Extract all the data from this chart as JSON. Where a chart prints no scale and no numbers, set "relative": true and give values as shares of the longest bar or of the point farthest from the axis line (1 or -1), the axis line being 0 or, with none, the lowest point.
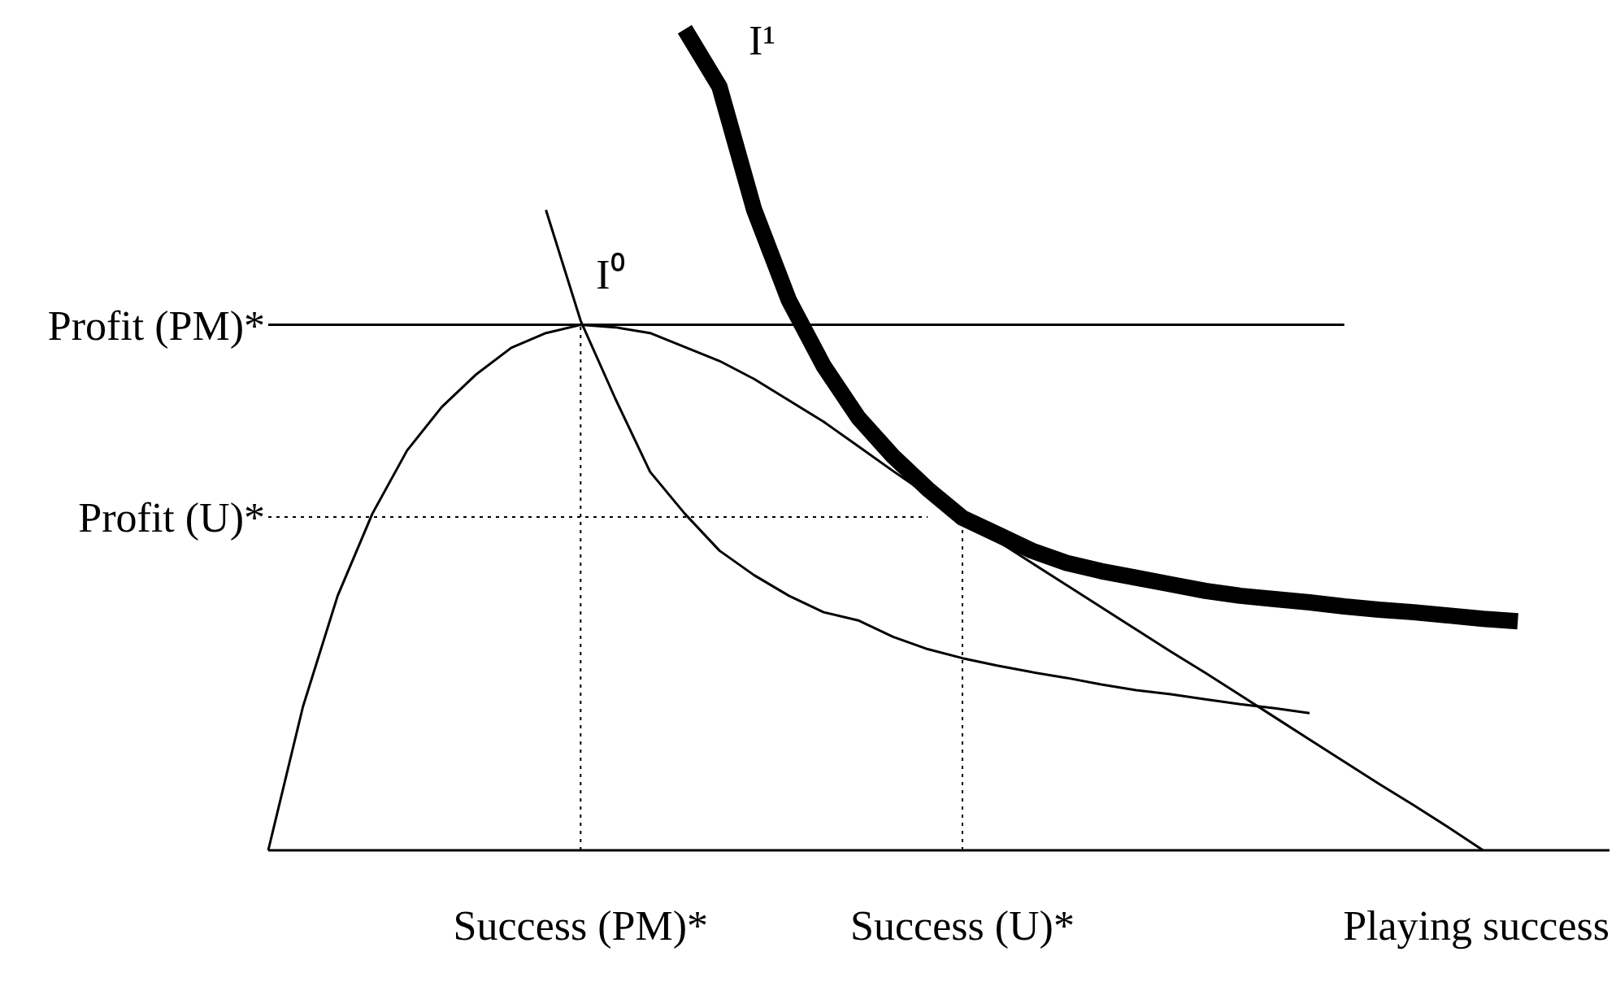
{
  "chart_data": {
    "type": "line",
    "relative": true,
    "xlabel": "Playing success",
    "categories": [
      null,
      null,
      null,
      null,
      null,
      null,
      null,
      null,
      null,
      "Success (PM)*",
      null,
      null,
      null,
      null,
      null,
      null,
      null,
      null,
      null,
      null,
      "Success (U)*",
      null,
      null,
      null,
      null,
      null,
      null,
      null,
      null,
      null,
      null,
      null,
      null,
      null,
      null,
      null,
      null,
      null,
      null
    ],
    "series": [
      {
        "color": "#000000",
        "values": [
          0,
          0.175,
          0.31,
          0.41,
          0.487,
          0.54,
          0.58,
          0.612,
          0.63,
          0.64,
          0.637,
          0.63,
          0.613,
          0.596,
          0.574,
          0.548,
          0.522,
          0.492,
          0.462,
          0.433,
          0.404,
          0.377,
          0.35,
          0.323,
          0.296,
          0.269,
          0.242,
          0.216,
          0.189,
          0.162,
          0.135,
          0.108,
          0.081,
          0.055,
          0.028,
          0,
          null,
          null,
          null
        ]
      },
      {
        "name": "I⁰",
        "color": "#000000",
        "values": [
          null,
          null,
          null,
          null,
          null,
          null,
          null,
          null,
          0.78,
          0.645,
          0.55,
          0.461,
          0.41,
          0.365,
          0.335,
          0.31,
          0.29,
          0.28,
          0.26,
          0.245,
          0.234,
          0.225,
          0.217,
          0.21,
          0.202,
          0.195,
          0.19,
          0.184,
          0.178,
          0.173,
          0.167,
          null,
          null,
          null,
          null,
          null,
          null,
          null,
          null
        ]
      },
      {
        "name": "I¹",
        "color": "#000000",
        "values": [
          null,
          null,
          null,
          null,
          null,
          null,
          null,
          null,
          null,
          null,
          null,
          null,
          1,
          0.93,
          0.78,
          0.67,
          0.59,
          0.527,
          0.48,
          0.44,
          0.405,
          0.385,
          0.365,
          0.35,
          0.34,
          0.332,
          0.324,
          0.316,
          0.31,
          0.306,
          0.302,
          0.297,
          0.293,
          0.29,
          0.286,
          0.282,
          0.279,
          null,
          null
        ]
      },
      {
        "name": "Profit (PM)*",
        "color": "#000000",
        "values": [
          0.64,
          0.64,
          0.64,
          0.64,
          0.64,
          0.64,
          0.64,
          0.64,
          0.64,
          0.64,
          0.64,
          0.64,
          0.64,
          0.64,
          0.64,
          0.64,
          0.64,
          0.64,
          0.64,
          0.64,
          0.64,
          0.64,
          0.64,
          0.64,
          0.64,
          0.64,
          0.64,
          0.64,
          0.64,
          0.64,
          0.64,
          0.64,
          null,
          null,
          null,
          null,
          null,
          null,
          null
        ]
      }
    ],
    "ref_lines": [
      {
        "axis": "y",
        "value": 0.406,
        "label": "Profit (U)*",
        "line_style": "dotted"
      },
      {
        "axis": "x",
        "value": "Success (PM)*",
        "line_style": "dotted"
      },
      {
        "axis": "x",
        "value": "Success (U)*",
        "line_style": "dotted"
      }
    ],
    "line_style": "solid",
    "marker": "none"
  }
}
